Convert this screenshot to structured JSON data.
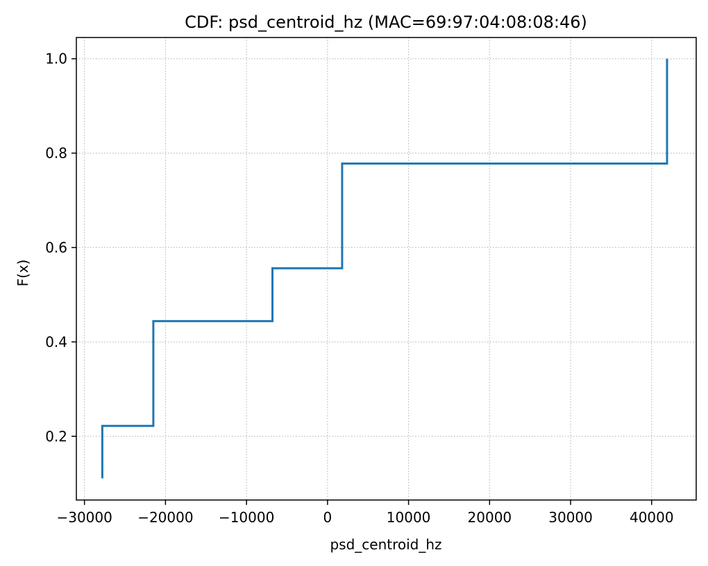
{
  "chart_data": {
    "type": "line",
    "step": true,
    "title": "CDF: psd_centroid_hz (MAC=69:97:04:08:08:46)",
    "xlabel": "psd_centroid_hz",
    "ylabel": "F(x)",
    "xlim": [
      -31000,
      45500
    ],
    "ylim": [
      0.065,
      1.045
    ],
    "xticks": [
      -30000,
      -20000,
      -10000,
      0,
      10000,
      20000,
      30000,
      40000
    ],
    "xtick_labels": [
      "−30000",
      "−20000",
      "−10000",
      "0",
      "10000",
      "20000",
      "30000",
      "40000"
    ],
    "yticks": [
      0.2,
      0.4,
      0.6,
      0.8,
      1.0
    ],
    "ytick_labels": [
      "0.2",
      "0.4",
      "0.6",
      "0.8",
      "1.0"
    ],
    "grid": true,
    "series": [
      {
        "color": "#1f77b4",
        "x": [
          -27800,
          -27800,
          -21500,
          -21500,
          -6800,
          -6800,
          1800,
          1800,
          41900,
          41900
        ],
        "y": [
          0.111,
          0.222,
          0.222,
          0.444,
          0.444,
          0.556,
          0.556,
          0.778,
          0.778,
          1.0
        ]
      }
    ]
  }
}
